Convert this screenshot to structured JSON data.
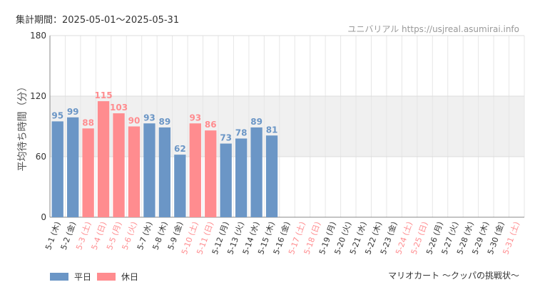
{
  "header": {
    "period": "集計期間：2025-05-01～2025-05-31",
    "site": "ユニバリアル https://usjreal.asumirai.info"
  },
  "footer": {
    "attraction": "マリオカート ～クッパの挑戦状～"
  },
  "legend": [
    {
      "name": "平日",
      "color": "#6b96c6"
    },
    {
      "name": "休日",
      "color": "#ff8c8f"
    }
  ],
  "chart_data": {
    "type": "bar",
    "ylabel": "平均待ち時間（分）",
    "ylim": [
      0,
      180
    ],
    "yticks": [
      0,
      60,
      120,
      180
    ],
    "shaded_band": [
      60,
      120
    ],
    "grid": true,
    "legend_position": "bottom-left",
    "categories": [
      "5-1 (木)",
      "5-2 (金)",
      "5-3 (土)",
      "5-4 (日)",
      "5-5 (月)",
      "5-6 (火)",
      "5-7 (水)",
      "5-8 (木)",
      "5-9 (金)",
      "5-10 (土)",
      "5-11 (日)",
      "5-12 (月)",
      "5-13 (火)",
      "5-14 (水)",
      "5-15 (木)",
      "5-16 (金)",
      "5-17 (土)",
      "5-18 (日)",
      "5-19 (月)",
      "5-20 (火)",
      "5-21 (水)",
      "5-22 (木)",
      "5-23 (金)",
      "5-24 (土)",
      "5-25 (日)",
      "5-26 (月)",
      "5-27 (火)",
      "5-28 (水)",
      "5-29 (木)",
      "5-30 (金)",
      "5-31 (土)"
    ],
    "values": [
      95,
      99,
      88,
      115,
      103,
      90,
      93,
      89,
      62,
      93,
      86,
      73,
      78,
      89,
      81,
      null,
      null,
      null,
      null,
      null,
      null,
      null,
      null,
      null,
      null,
      null,
      null,
      null,
      null,
      null,
      null
    ],
    "holiday": [
      false,
      false,
      true,
      true,
      true,
      true,
      false,
      false,
      false,
      true,
      true,
      false,
      false,
      false,
      false,
      false,
      true,
      true,
      false,
      false,
      false,
      false,
      false,
      true,
      true,
      false,
      false,
      false,
      false,
      false,
      true
    ]
  }
}
